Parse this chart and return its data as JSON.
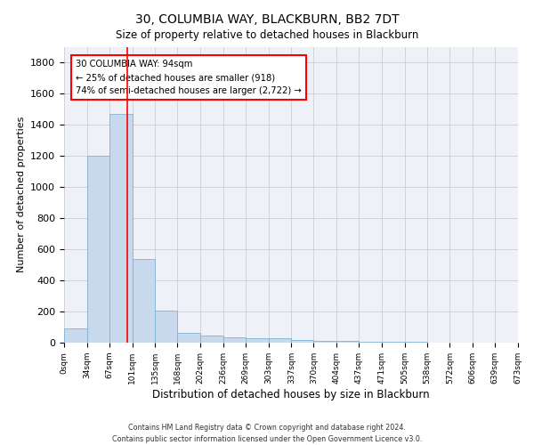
{
  "title": "30, COLUMBIA WAY, BLACKBURN, BB2 7DT",
  "subtitle": "Size of property relative to detached houses in Blackburn",
  "xlabel": "Distribution of detached houses by size in Blackburn",
  "ylabel": "Number of detached properties",
  "bar_color": "#c9d9ed",
  "bar_edge_color": "#7fb3d3",
  "background_color": "#eef2f8",
  "grid_color": "#c8c8c8",
  "property_line_x": 94,
  "property_line_color": "red",
  "annotation_text": "30 COLUMBIA WAY: 94sqm\n← 25% of detached houses are smaller (918)\n74% of semi-detached houses are larger (2,722) →",
  "bins": [
    0,
    34,
    67,
    101,
    135,
    168,
    202,
    236,
    269,
    303,
    337,
    370,
    404,
    437,
    471,
    505,
    538,
    572,
    606,
    639,
    673
  ],
  "bin_labels": [
    "0sqm",
    "34sqm",
    "67sqm",
    "101sqm",
    "135sqm",
    "168sqm",
    "202sqm",
    "236sqm",
    "269sqm",
    "303sqm",
    "337sqm",
    "370sqm",
    "404sqm",
    "437sqm",
    "471sqm",
    "505sqm",
    "538sqm",
    "572sqm",
    "606sqm",
    "639sqm",
    "673sqm"
  ],
  "bar_heights": [
    90,
    1200,
    1470,
    540,
    205,
    65,
    47,
    37,
    28,
    28,
    15,
    10,
    10,
    8,
    5,
    3,
    2,
    1,
    1,
    0
  ],
  "ylim": [
    0,
    1900
  ],
  "yticks": [
    0,
    200,
    400,
    600,
    800,
    1000,
    1200,
    1400,
    1600,
    1800
  ],
  "footer_text": "Contains HM Land Registry data © Crown copyright and database right 2024.\nContains public sector information licensed under the Open Government Licence v3.0.",
  "figsize": [
    6.0,
    5.0
  ],
  "dpi": 100
}
